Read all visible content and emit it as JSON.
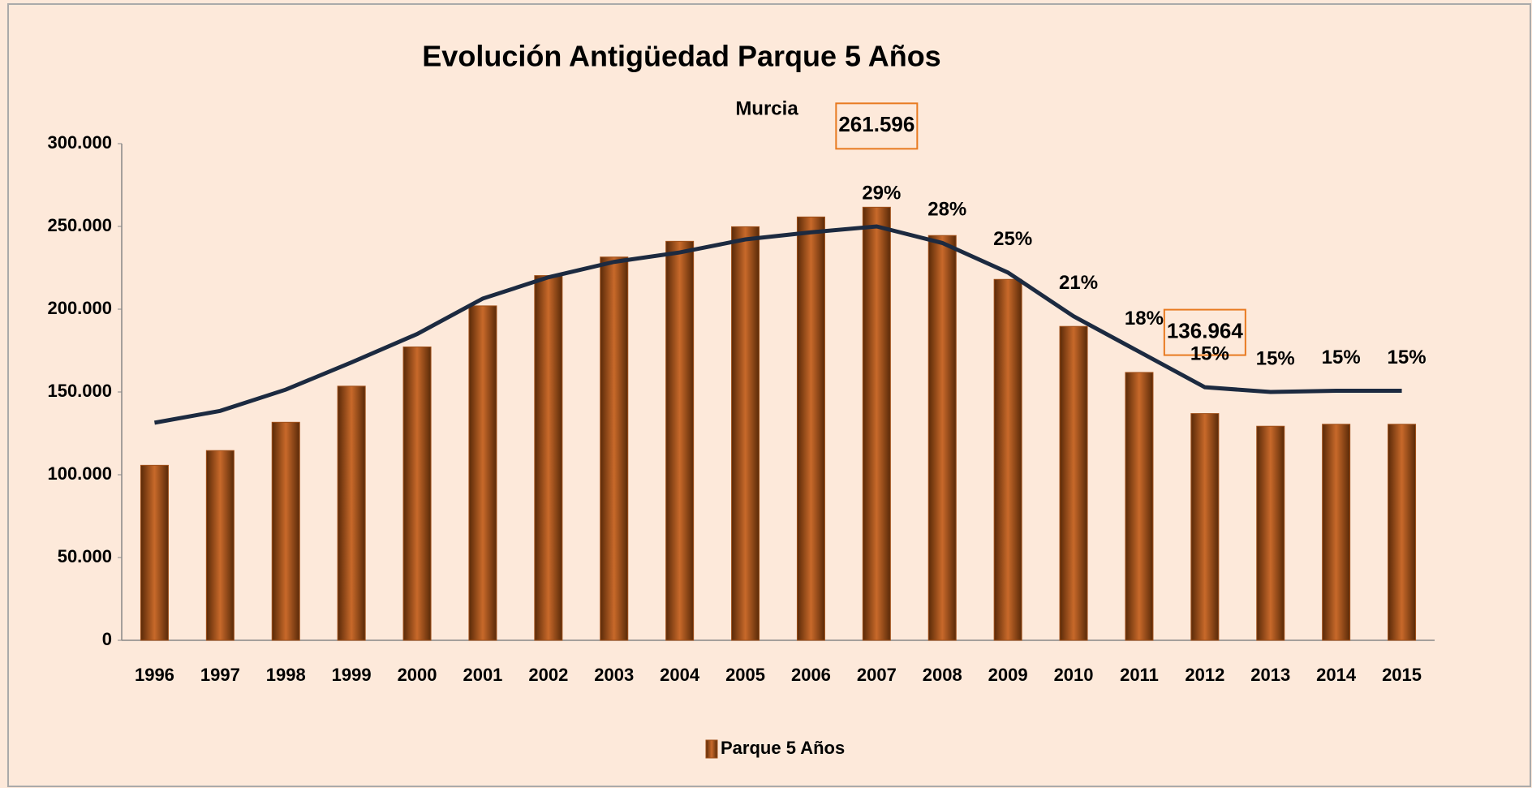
{
  "chart_data": {
    "type": "bar",
    "title": "Evolución Antigüedad Parque 5 Años",
    "subtitle": "Murcia",
    "categories": [
      "1996",
      "1997",
      "1998",
      "1999",
      "2000",
      "2001",
      "2002",
      "2003",
      "2004",
      "2005",
      "2006",
      "2007",
      "2008",
      "2009",
      "2010",
      "2011",
      "2012",
      "2013",
      "2014",
      "2015"
    ],
    "series": [
      {
        "name": "Parque 5 Años",
        "type": "bar",
        "color": "#a0501a",
        "values": [
          105700,
          114600,
          131700,
          153500,
          177200,
          202000,
          220300,
          231500,
          241000,
          249800,
          255700,
          261596,
          244500,
          218000,
          189600,
          161800,
          136964,
          129300,
          130500,
          130500
        ],
        "value_labels": [
          null,
          null,
          null,
          null,
          null,
          null,
          null,
          null,
          null,
          null,
          null,
          "261.596",
          null,
          null,
          null,
          null,
          "136.964",
          null,
          null,
          null
        ]
      },
      {
        "type": "line",
        "axis": "y2",
        "color": "#1c2a40",
        "values": [
          12.4,
          13.4,
          15.2,
          17.5,
          19.9,
          22.9,
          24.7,
          26.0,
          26.8,
          27.9,
          28.5,
          29,
          27.6,
          25.1,
          21.4,
          18.4,
          15.4,
          15.0,
          15.1,
          15.1
        ],
        "value_labels": [
          null,
          null,
          null,
          null,
          null,
          null,
          null,
          null,
          null,
          null,
          null,
          "29%",
          "28%",
          "25%",
          "21%",
          "18%",
          "15%",
          "15%",
          "15%",
          "15%"
        ]
      }
    ],
    "ylim": [
      0,
      300000
    ],
    "yticks": [
      0,
      {
        "value": 50000,
        "label": "50.000"
      },
      {
        "value": 100000,
        "label": "100.000"
      },
      {
        "value": 150000,
        "label": "150.000"
      },
      {
        "value": 200000,
        "label": "200.000"
      },
      {
        "value": 250000,
        "label": "250.000"
      },
      {
        "value": 300000,
        "label": "300.000"
      }
    ],
    "y2lim": [
      -6,
      36
    ],
    "grid": false,
    "legend": "bottom"
  }
}
